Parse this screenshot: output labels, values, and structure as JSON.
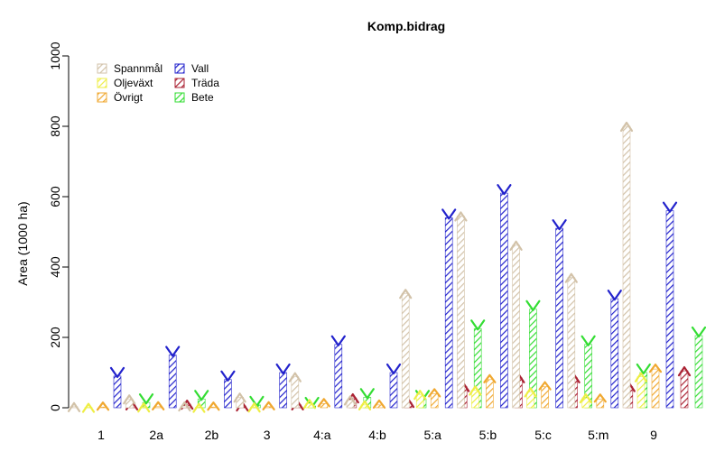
{
  "chart_data": {
    "type": "bar",
    "title": "Komp.bidrag",
    "xlabel": "",
    "ylabel": "Area (1000 ha)",
    "ylim": [
      0,
      1000
    ],
    "yticks": [
      0,
      200,
      400,
      600,
      800,
      1000
    ],
    "grid": false,
    "legend_position": "top-left",
    "categories": [
      "1",
      "2a",
      "2b",
      "3",
      "4:a",
      "4:b",
      "5:a",
      "5:b",
      "5:c",
      "5:m",
      "9"
    ],
    "series": [
      {
        "name": "Spannmål",
        "color": "#D2C2A8",
        "marker": "arrow-up",
        "values": [
          3,
          25,
          5,
          30,
          88,
          22,
          325,
          545,
          462,
          370,
          800
        ]
      },
      {
        "name": "Oljeväxt",
        "color": "#EEEE44",
        "marker": "arrow-up",
        "values": [
          1,
          2,
          1,
          2,
          12,
          8,
          38,
          50,
          45,
          28,
          88
        ]
      },
      {
        "name": "Övrigt",
        "color": "#F0A830",
        "marker": "chevron-up",
        "values": [
          2,
          3,
          2,
          3,
          12,
          8,
          40,
          80,
          60,
          25,
          110
        ]
      },
      {
        "name": "Vall",
        "color": "#2222CC",
        "marker": "chevron-down",
        "values": [
          90,
          150,
          80,
          100,
          180,
          100,
          540,
          610,
          510,
          310,
          560
        ]
      },
      {
        "name": "Träda",
        "color": "#AA2233",
        "marker": "arrow-up",
        "values": [
          8,
          10,
          5,
          8,
          28,
          15,
          60,
          85,
          85,
          60,
          105
        ]
      },
      {
        "name": "Bete",
        "color": "#33DD33",
        "marker": "chevron-down",
        "values": [
          15,
          25,
          8,
          5,
          30,
          25,
          225,
          280,
          180,
          100,
          205
        ]
      }
    ]
  }
}
